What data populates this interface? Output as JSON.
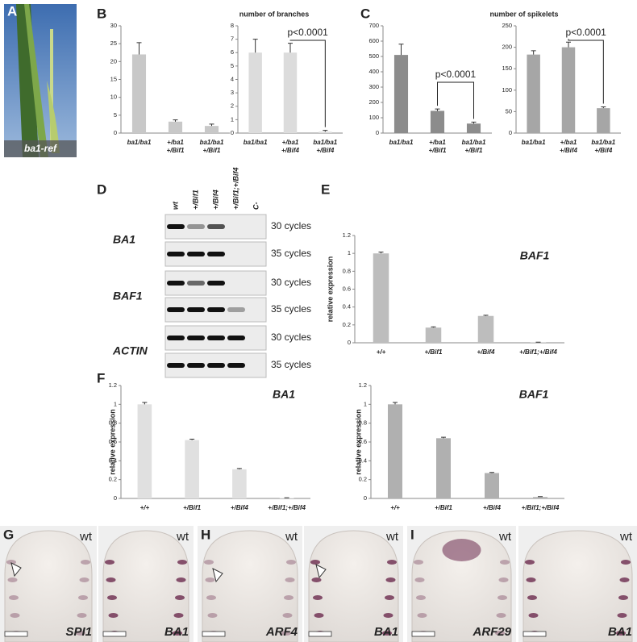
{
  "panel_labels": [
    "A",
    "B",
    "C",
    "D",
    "E",
    "F",
    "G",
    "H",
    "I"
  ],
  "photo": {
    "caption": "ba1-ref"
  },
  "gel": {
    "lanes": [
      "wt",
      "+/Bif1",
      "+/Bif4",
      "+/Bif1;+/Bif4",
      "C-"
    ],
    "genes": [
      "BA1",
      "BAF1",
      "ACTIN"
    ],
    "cycles": [
      "30 cycles",
      "35 cycles",
      "30 cycles",
      "35 cycles",
      "30 cycles",
      "35 cycles"
    ]
  },
  "micrographs": [
    {
      "genotype": "wt",
      "gene": "SPI1"
    },
    {
      "genotype": "wt",
      "gene": "BA1"
    },
    {
      "genotype": "wt",
      "gene": "ARF4"
    },
    {
      "genotype": "wt",
      "gene": "BA1"
    },
    {
      "genotype": "wt",
      "gene": "ARF29"
    },
    {
      "genotype": "wt",
      "gene": "BA1"
    }
  ],
  "chart_data": [
    {
      "type": "bar",
      "title": "number of branches",
      "categories": [
        [
          "ba1/ba1"
        ],
        [
          "+/ba1",
          "+/Bif1"
        ],
        [
          "ba1/ba1",
          "+/Bif1"
        ]
      ],
      "values": [
        22,
        3.2,
        2
      ],
      "errors": [
        3.3,
        0.5,
        0.5
      ],
      "color": "#c8c8c8",
      "ylim": [
        0,
        30
      ],
      "yticks": [
        0,
        5,
        10,
        15,
        20,
        25,
        30
      ]
    },
    {
      "type": "bar",
      "categories": [
        [
          "ba1/ba1"
        ],
        [
          "+/ba1",
          "+/Bif4"
        ],
        [
          "ba1/ba1",
          "+/Bif4"
        ]
      ],
      "values": [
        6,
        6,
        0.1
      ],
      "errors": [
        1,
        0.7,
        0.1
      ],
      "color": "#dcdcdc",
      "ylim": [
        0,
        8
      ],
      "yticks": [
        0,
        1,
        2,
        3,
        4,
        5,
        6,
        7,
        8
      ],
      "annotation": "p<0.0001"
    },
    {
      "type": "bar",
      "title": "number of spikelets",
      "categories": [
        [
          "ba1/ba1"
        ],
        [
          "+/ba1",
          "+/Bif1"
        ],
        [
          "ba1/ba1",
          "+/Bif1"
        ]
      ],
      "values": [
        510,
        145,
        62
      ],
      "errors": [
        70,
        12,
        10
      ],
      "color": "#8c8c8c",
      "ylim": [
        0,
        700
      ],
      "yticks": [
        0,
        100,
        200,
        300,
        400,
        500,
        600,
        700
      ],
      "annotation": "p<0.0001"
    },
    {
      "type": "bar",
      "categories": [
        [
          "ba1/ba1"
        ],
        [
          "+/ba1",
          "+/Bif4"
        ],
        [
          "ba1/ba1",
          "+/Bif4"
        ]
      ],
      "values": [
        183,
        200,
        58
      ],
      "errors": [
        9,
        12,
        3
      ],
      "color": "#a6a6a6",
      "ylim": [
        0,
        250
      ],
      "yticks": [
        0,
        50,
        100,
        150,
        200,
        250
      ],
      "annotation": "p<0.0001"
    },
    {
      "type": "bar",
      "title": "BAF1",
      "y_label": "relative expression",
      "categories": [
        [
          "+/+"
        ],
        [
          "+/Bif1"
        ],
        [
          "+/Bif4"
        ],
        [
          "+/Bif1;+/Bif4"
        ]
      ],
      "values": [
        1,
        0.17,
        0.3,
        0.005
      ],
      "errors": [
        0.015,
        0.008,
        0.008,
        0.002
      ],
      "color": "#bdbdbd",
      "ylim": [
        0,
        1.2
      ],
      "yticks": [
        0,
        0.2,
        0.4,
        0.6,
        0.8,
        1,
        1.2
      ]
    },
    {
      "type": "bar",
      "title": "BA1",
      "y_label": "relative expression",
      "categories": [
        [
          "+/+"
        ],
        [
          "+/Bif1"
        ],
        [
          "+/Bif4"
        ],
        [
          "+/Bif1;+/Bif4"
        ]
      ],
      "values": [
        1,
        0.62,
        0.31,
        0.005
      ],
      "errors": [
        0.02,
        0.01,
        0.008,
        0.002
      ],
      "color": "#e0e0e0",
      "ylim": [
        0,
        1.2
      ],
      "yticks": [
        0,
        0.2,
        0.4,
        0.6,
        0.8,
        1,
        1.2
      ]
    },
    {
      "type": "bar",
      "title": "BAF1",
      "y_label": "relative expression",
      "categories": [
        [
          "+/+"
        ],
        [
          "+/Bif1"
        ],
        [
          "+/Bif4"
        ],
        [
          "+/Bif1;+/Bif4"
        ]
      ],
      "values": [
        1,
        0.64,
        0.27,
        0.015
      ],
      "errors": [
        0.02,
        0.01,
        0.006,
        0.004
      ],
      "color": "#b0b0b0",
      "ylim": [
        0,
        1.2
      ],
      "yticks": [
        0,
        0.2,
        0.4,
        0.6,
        0.8,
        1,
        1.2
      ]
    }
  ]
}
